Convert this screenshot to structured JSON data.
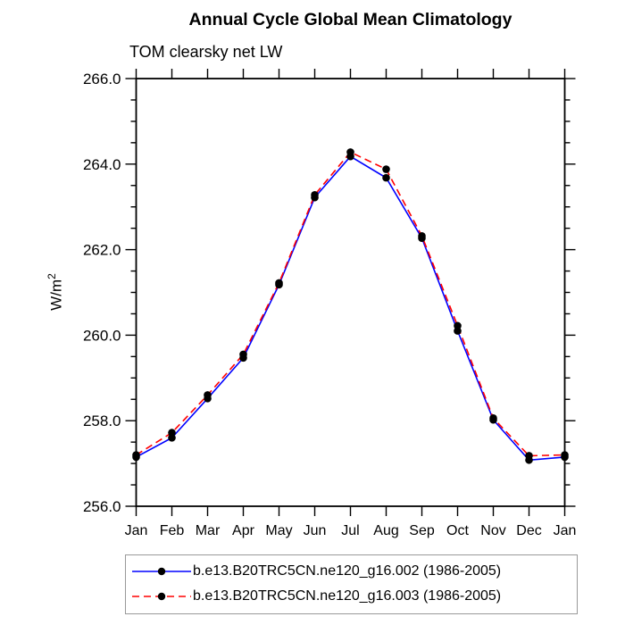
{
  "chart_data": {
    "type": "line",
    "title": "Annual Cycle Global Mean Climatology",
    "subtitle": "TOM clearsky net LW",
    "ylabel_base": "W/m",
    "ylabel_exponent": "2",
    "xlabel": "",
    "categories": [
      "Jan",
      "Feb",
      "Mar",
      "Apr",
      "May",
      "Jun",
      "Jul",
      "Aug",
      "Sep",
      "Oct",
      "Nov",
      "Dec",
      "Jan"
    ],
    "ylim": [
      256.0,
      266.0
    ],
    "ytick_values": [
      256.0,
      258.0,
      260.0,
      262.0,
      264.0,
      266.0
    ],
    "ytick_labels": [
      "256.0",
      "258.0",
      "260.0",
      "262.0",
      "264.0",
      "266.0"
    ],
    "minor_tick_interval": 0.5,
    "grid": false,
    "legend_position": "bottom",
    "axis_color": "#000000",
    "marker_shape": "filled-circle",
    "series": [
      {
        "name": "b.e13.B20TRC5CN.ne120_g16.002 (1986-2005)",
        "color": "#0000ff",
        "line_style": "solid",
        "marker": "filled-circle",
        "marker_color": "#000000",
        "values": [
          257.15,
          257.6,
          258.52,
          259.47,
          261.18,
          263.22,
          264.18,
          263.68,
          262.27,
          260.1,
          258.02,
          257.08,
          257.15
        ]
      },
      {
        "name": "b.e13.B20TRC5CN.ne120_g16.003 (1986-2005)",
        "color": "#ff0000",
        "line_style": "dashed",
        "marker": "filled-circle",
        "marker_color": "#000000",
        "values": [
          257.2,
          257.72,
          258.6,
          259.55,
          261.22,
          263.28,
          264.28,
          263.88,
          262.32,
          260.22,
          258.06,
          257.18,
          257.2
        ]
      }
    ]
  }
}
